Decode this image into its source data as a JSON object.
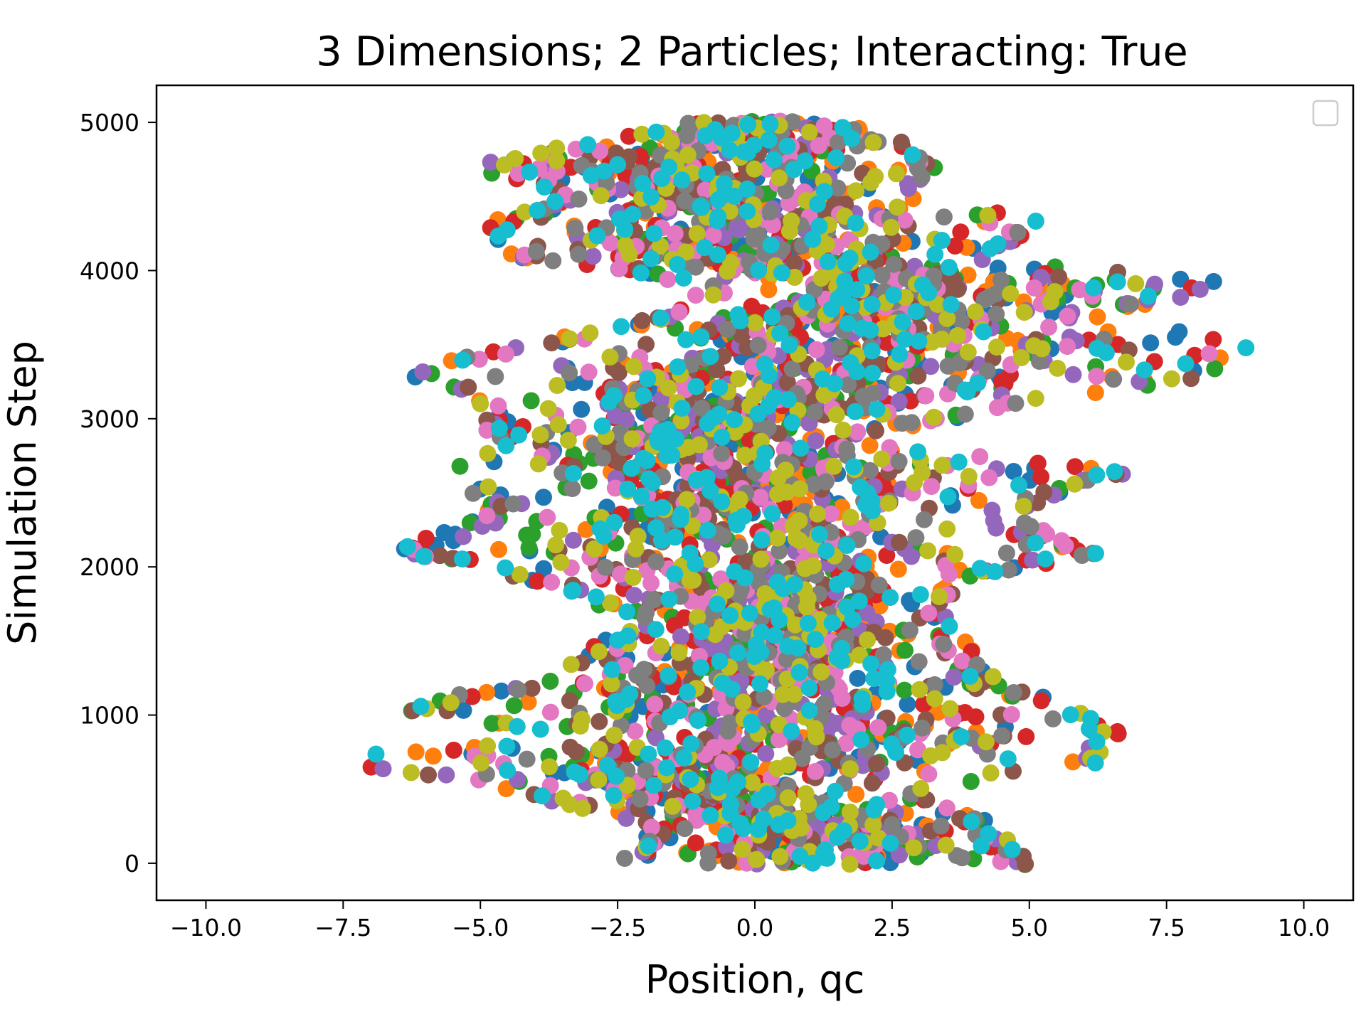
{
  "chart_data": {
    "type": "line",
    "title": "3 Dimensions; 2 Particles; Interacting: True",
    "xlabel": "Position, qc",
    "ylabel": "Simulation Step",
    "xlim": [
      -10.9,
      10.9
    ],
    "ylim": [
      -250,
      5250
    ],
    "xticks": [
      -10.0,
      -7.5,
      -5.0,
      -2.5,
      0.0,
      2.5,
      5.0,
      7.5,
      10.0
    ],
    "xtick_labels": [
      "−10.0",
      "−7.5",
      "−5.0",
      "−2.5",
      "0.0",
      "2.5",
      "5.0",
      "7.5",
      "10.0"
    ],
    "yticks": [
      0,
      1000,
      2000,
      3000,
      4000,
      5000
    ],
    "ytick_labels": [
      "0",
      "1000",
      "2000",
      "3000",
      "4000",
      "5000"
    ],
    "grid": false,
    "legend": {
      "placement": "upper-right",
      "entries": []
    },
    "marker": "circle",
    "series_colors": [
      "#1f77b4",
      "#ff7f0e",
      "#2ca02c",
      "#d62728",
      "#9467bd",
      "#8c564b",
      "#e377c2",
      "#7f7f7f",
      "#bcbd22",
      "#17becf"
    ],
    "envelope": [
      {
        "y": 0,
        "xmin": -2.5,
        "xmax": 5.0
      },
      {
        "y": 250,
        "xmin": -2.0,
        "xmax": 4.5
      },
      {
        "y": 500,
        "xmin": -4.5,
        "xmax": 3.0
      },
      {
        "y": 700,
        "xmin": -8.0,
        "xmax": 6.5
      },
      {
        "y": 850,
        "xmin": -3.5,
        "xmax": 6.8
      },
      {
        "y": 1050,
        "xmin": -6.5,
        "xmax": 6.0
      },
      {
        "y": 1200,
        "xmin": -4.5,
        "xmax": 4.5
      },
      {
        "y": 1450,
        "xmin": -3.0,
        "xmax": 4.0
      },
      {
        "y": 1700,
        "xmin": -2.5,
        "xmax": 3.5
      },
      {
        "y": 1950,
        "xmin": -4.5,
        "xmax": 4.0
      },
      {
        "y": 2100,
        "xmin": -6.5,
        "xmax": 6.5
      },
      {
        "y": 2350,
        "xmin": -5.0,
        "xmax": 4.5
      },
      {
        "y": 2650,
        "xmin": -5.5,
        "xmax": 7.0
      },
      {
        "y": 2850,
        "xmin": -5.0,
        "xmax": 1.5
      },
      {
        "y": 3100,
        "xmin": -5.0,
        "xmax": 5.0
      },
      {
        "y": 3300,
        "xmin": -6.5,
        "xmax": 8.5
      },
      {
        "y": 3500,
        "xmin": -4.5,
        "xmax": 9.0
      },
      {
        "y": 3700,
        "xmin": -1.5,
        "xmax": 6.0
      },
      {
        "y": 3900,
        "xmin": -1.0,
        "xmax": 9.0
      },
      {
        "y": 4100,
        "xmin": -4.5,
        "xmax": 4.0
      },
      {
        "y": 4300,
        "xmin": -5.0,
        "xmax": 5.5
      },
      {
        "y": 4500,
        "xmin": -3.5,
        "xmax": 3.0
      },
      {
        "y": 4700,
        "xmin": -5.3,
        "xmax": 3.5
      },
      {
        "y": 4850,
        "xmin": -3.5,
        "xmax": 3.0
      },
      {
        "y": 5000,
        "xmin": -1.5,
        "xmax": 1.5
      }
    ]
  }
}
